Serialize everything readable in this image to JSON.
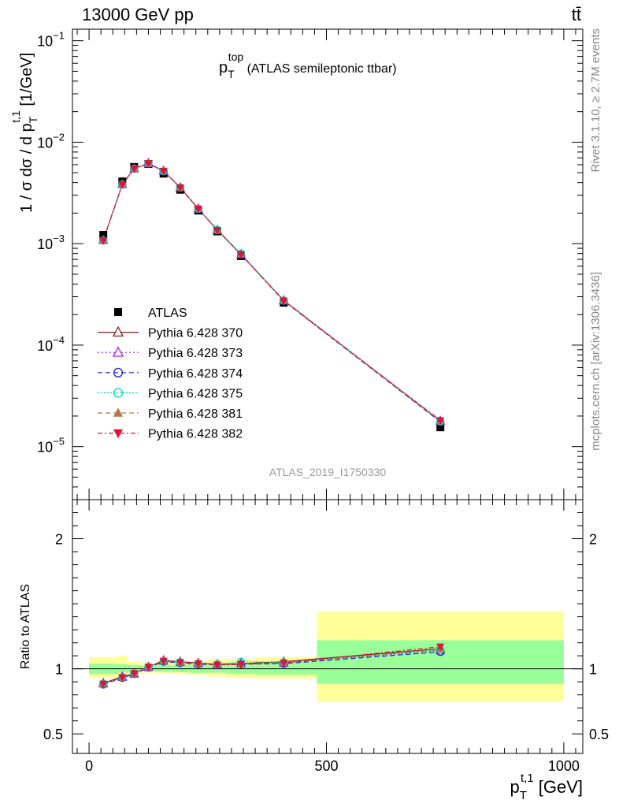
{
  "header": {
    "energy_label": "13000 GeV pp",
    "process_label": "tt̄"
  },
  "side_labels": {
    "rivet": "Rivet 3.1.10, ≥ 2.7M events",
    "mcplots": "mcplots.cern.ch [arXiv:1306.3436]"
  },
  "chart_data": {
    "type": "line",
    "title_main": "p",
    "title_sup": "top",
    "title_sub": "T",
    "title_rest": " (ATLAS semileptonic ttbar)",
    "analysis_id": "ATLAS_2019_I1750330",
    "ylabel": "1 / σ dσ / d p",
    "ylabel_sup": "t,1",
    "ylabel_sub": "T",
    "ylabel_unit": " [1/GeV]",
    "xlabel_main": "p",
    "xlabel_sup": "t,1",
    "xlabel_sub": "T",
    "xlabel_unit": " [GeV]",
    "xlim": [
      -35,
      1040
    ],
    "ylim": [
      3e-06,
      0.13
    ],
    "yscale": "log",
    "ratio_ylabel": "Ratio to ATLAS",
    "ratio_ylim": [
      0.35,
      2.3
    ],
    "x_ticks": [
      0,
      500,
      1000
    ],
    "x_tick_labels": [
      "0",
      "500",
      "1000"
    ],
    "y_ticks": [
      {
        "base": "10",
        "exp": "−1"
      },
      {
        "base": "10",
        "exp": "−2"
      },
      {
        "base": "10",
        "exp": "−3"
      },
      {
        "base": "10",
        "exp": "−4"
      },
      {
        "base": "10",
        "exp": "−5"
      }
    ],
    "ratio_ticks": [
      "2",
      "1",
      "0.5"
    ],
    "bins": [
      {
        "lo": 0,
        "hi": 60
      },
      {
        "lo": 60,
        "hi": 80
      },
      {
        "lo": 80,
        "hi": 110
      },
      {
        "lo": 110,
        "hi": 140
      },
      {
        "lo": 140,
        "hi": 175
      },
      {
        "lo": 175,
        "hi": 210
      },
      {
        "lo": 210,
        "hi": 250
      },
      {
        "lo": 250,
        "hi": 290
      },
      {
        "lo": 290,
        "hi": 350
      },
      {
        "lo": 350,
        "hi": 480
      },
      {
        "lo": 480,
        "hi": 1000
      }
    ],
    "x": [
      30,
      70,
      95,
      125,
      157,
      192,
      230,
      270,
      320,
      410,
      740
    ],
    "atlas": [
      0.00122,
      0.0041,
      0.0057,
      0.0061,
      0.0049,
      0.0034,
      0.00212,
      0.00132,
      0.000755,
      0.000262,
      1.55e-05
    ],
    "band_inner": [
      [
        0.96,
        1.04
      ],
      [
        0.97,
        1.035
      ],
      [
        0.975,
        1.03
      ],
      [
        0.985,
        1.025
      ],
      [
        0.98,
        1.03
      ],
      [
        0.975,
        1.03
      ],
      [
        0.97,
        1.035
      ],
      [
        0.97,
        1.04
      ],
      [
        0.96,
        1.04
      ],
      [
        0.955,
        1.055
      ],
      [
        0.885,
        1.22
      ]
    ],
    "band_outer": [
      [
        0.93,
        1.09
      ],
      [
        0.94,
        1.1
      ],
      [
        0.96,
        1.055
      ],
      [
        0.97,
        1.04
      ],
      [
        0.965,
        1.05
      ],
      [
        0.96,
        1.055
      ],
      [
        0.955,
        1.06
      ],
      [
        0.94,
        1.075
      ],
      [
        0.93,
        1.075
      ],
      [
        0.925,
        1.09
      ],
      [
        0.75,
        1.44
      ]
    ],
    "series": [
      {
        "name": "ATLAS",
        "color": "#000000",
        "marker": "square-filled",
        "dash": "",
        "ratio": []
      },
      {
        "name": "Pythia 6.428 370",
        "color": "#8b1a1a",
        "marker": "triangle-open",
        "dash": "",
        "ratio": [
          0.89,
          0.94,
          0.965,
          1.015,
          1.065,
          1.055,
          1.045,
          1.035,
          1.04,
          1.055,
          1.155
        ]
      },
      {
        "name": "Pythia 6.428 373",
        "color": "#a020f0",
        "marker": "triangle-open",
        "dash": "2,3",
        "ratio": [
          0.885,
          0.935,
          0.96,
          1.01,
          1.06,
          1.05,
          1.04,
          1.03,
          1.04,
          1.045,
          1.14
        ]
      },
      {
        "name": "Pythia 6.428 374",
        "color": "#2020d8",
        "marker": "circle-open",
        "dash": "6,4",
        "ratio": [
          0.88,
          0.93,
          0.96,
          1.01,
          1.055,
          1.045,
          1.035,
          1.03,
          1.035,
          1.04,
          1.13
        ]
      },
      {
        "name": "Pythia 6.428 375",
        "color": "#00d6b2",
        "marker": "circle-open",
        "dash": "2,2",
        "ratio": [
          0.885,
          0.935,
          0.965,
          1.015,
          1.06,
          1.05,
          1.04,
          1.035,
          1.055,
          1.05,
          1.145
        ]
      },
      {
        "name": "Pythia 6.428 381",
        "color": "#b07a4a",
        "marker": "triangle-filled",
        "dash": "6,4",
        "ratio": [
          0.885,
          0.935,
          0.965,
          1.015,
          1.06,
          1.05,
          1.04,
          1.03,
          1.035,
          1.045,
          1.15
        ]
      },
      {
        "name": "Pythia 6.428 382",
        "color": "#dc143c",
        "marker": "triangle-down-filled",
        "dash": "6,3,2,3",
        "ratio": [
          0.885,
          0.935,
          0.965,
          1.015,
          1.06,
          1.05,
          1.04,
          1.03,
          1.035,
          1.045,
          1.17
        ]
      }
    ]
  }
}
